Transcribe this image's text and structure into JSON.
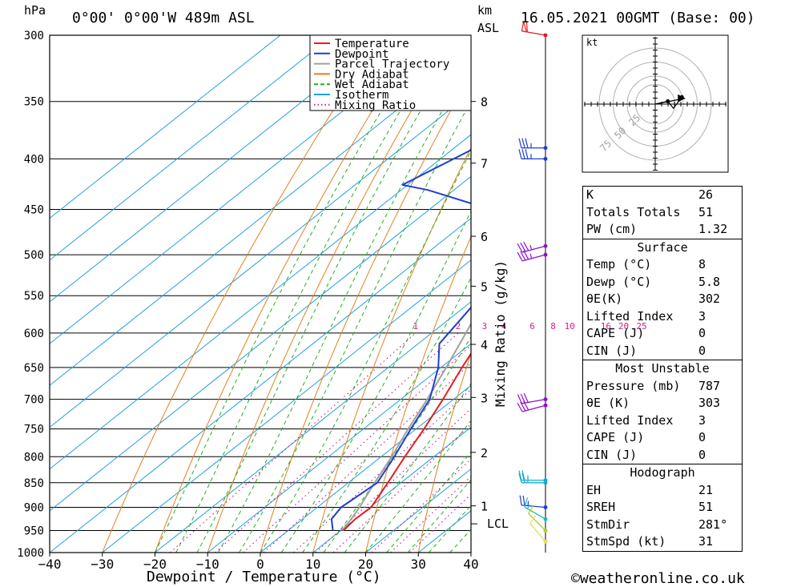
{
  "header": {
    "location": "0°00' 0°00'W 489m ASL",
    "datetime": "16.05.2021 00GMT (Base: 00)",
    "unit_hpa": "hPa",
    "unit_km": "km",
    "unit_asl": "ASL"
  },
  "legend": {
    "items": [
      {
        "label": "Temperature",
        "color": "#e02020",
        "style": "solid"
      },
      {
        "label": "Dewpoint",
        "color": "#1f3fd0",
        "style": "solid"
      },
      {
        "label": "Parcel Trajectory",
        "color": "#a0a0a0",
        "style": "solid"
      },
      {
        "label": "Dry Adiabat",
        "color": "#e08020",
        "style": "solid"
      },
      {
        "label": "Wet Adiabat",
        "color": "#20b020",
        "style": "dashed"
      },
      {
        "label": "Isotherm",
        "color": "#20a0e0",
        "style": "solid"
      },
      {
        "label": "Mixing Ratio",
        "color": "#d0208a",
        "style": "dotted"
      }
    ]
  },
  "chart_data": {
    "type": "skew-t",
    "xlabel": "Dewpoint / Temperature (°C)",
    "x_ticks": [
      "−40",
      "−30",
      "−20",
      "−10",
      "0",
      "10",
      "20",
      "30",
      "40"
    ],
    "xlim": [
      -40,
      40
    ],
    "ylabel_pressure_ticks": [
      "300",
      "350",
      "400",
      "450",
      "500",
      "550",
      "600",
      "650",
      "700",
      "750",
      "800",
      "850",
      "900",
      "950",
      "1000"
    ],
    "km_ticks": [
      {
        "label": "8",
        "p": 350
      },
      {
        "label": "7",
        "p": 404
      },
      {
        "label": "6",
        "p": 479
      },
      {
        "label": "5",
        "p": 538
      },
      {
        "label": "4",
        "p": 616
      },
      {
        "label": "3",
        "p": 697
      },
      {
        "label": "2",
        "p": 792
      },
      {
        "label": "1",
        "p": 897
      }
    ],
    "lcl_label": "LCL",
    "lcl_pressure": 918,
    "mixing_ratio_title": "Mixing Ratio (g/kg)",
    "mixing_ratio_labels": [
      "1",
      "2",
      "3",
      "4",
      "6",
      "8",
      "10",
      "16",
      "20",
      "25"
    ],
    "temperature": [
      {
        "p": 950,
        "t": 10.5
      },
      {
        "p": 925,
        "t": 10.0
      },
      {
        "p": 900,
        "t": 10.2
      },
      {
        "p": 850,
        "t": 7.5
      },
      {
        "p": 800,
        "t": 4.5
      },
      {
        "p": 750,
        "t": 1.5
      },
      {
        "p": 700,
        "t": -2.0
      },
      {
        "p": 650,
        "t": -6.0
      },
      {
        "p": 600,
        "t": -10.0
      },
      {
        "p": 550,
        "t": -15.0
      },
      {
        "p": 500,
        "t": -20.5
      },
      {
        "p": 460,
        "t": -25.5
      },
      {
        "p": 455,
        "t": -26.0
      },
      {
        "p": 430,
        "t": -22.0
      },
      {
        "p": 400,
        "t": -25.0
      },
      {
        "p": 370,
        "t": -29.0
      },
      {
        "p": 350,
        "t": -30.5
      },
      {
        "p": 300,
        "t": -35.0
      }
    ],
    "dewpoint": [
      {
        "p": 950,
        "t": 8.5
      },
      {
        "p": 925,
        "t": 5.5
      },
      {
        "p": 900,
        "t": 4.5
      },
      {
        "p": 850,
        "t": 5.5
      },
      {
        "p": 800,
        "t": 2.5
      },
      {
        "p": 750,
        "t": -1.0
      },
      {
        "p": 700,
        "t": -4.5
      },
      {
        "p": 650,
        "t": -10.5
      },
      {
        "p": 615,
        "t": -16.0
      },
      {
        "p": 550,
        "t": -19.5
      },
      {
        "p": 500,
        "t": -25.0
      },
      {
        "p": 450,
        "t": -30.0
      },
      {
        "p": 448,
        "t": -40.0
      },
      {
        "p": 430,
        "t": -55.0
      },
      {
        "p": 425,
        "t": -61.0
      },
      {
        "p": 370,
        "t": -53.0
      },
      {
        "p": 340,
        "t": -55.0
      },
      {
        "p": 300,
        "t": -60.0
      }
    ],
    "parcel": [
      {
        "p": 950,
        "t": 10.3
      },
      {
        "p": 918,
        "t": 8.9
      },
      {
        "p": 900,
        "t": 8.0
      },
      {
        "p": 850,
        "t": 5.0
      },
      {
        "p": 800,
        "t": 2.0
      },
      {
        "p": 750,
        "t": -1.5
      },
      {
        "p": 700,
        "t": -5.0
      },
      {
        "p": 650,
        "t": -9.0
      },
      {
        "p": 600,
        "t": -13.5
      },
      {
        "p": 550,
        "t": -18.5
      },
      {
        "p": 500,
        "t": -24.5
      },
      {
        "p": 450,
        "t": -31.0
      },
      {
        "p": 400,
        "t": -38.5
      },
      {
        "p": 350,
        "t": -47.0
      },
      {
        "p": 300,
        "t": -56.5
      }
    ],
    "wind_barbs": [
      {
        "p": 300,
        "color": "#e02020",
        "dir": 280,
        "speed": 60
      },
      {
        "p": 390,
        "color": "#1f3fd0",
        "dir": 270,
        "speed": 35
      },
      {
        "p": 400,
        "color": "#1f3fd0",
        "dir": 270,
        "speed": 35
      },
      {
        "p": 490,
        "color": "#9010d0",
        "dir": 255,
        "speed": 35
      },
      {
        "p": 500,
        "color": "#9010d0",
        "dir": 255,
        "speed": 35
      },
      {
        "p": 700,
        "color": "#9010d0",
        "dir": 260,
        "speed": 30
      },
      {
        "p": 710,
        "color": "#9010d0",
        "dir": 255,
        "speed": 30
      },
      {
        "p": 845,
        "color": "#10b0d0",
        "dir": 270,
        "speed": 25
      },
      {
        "p": 850,
        "color": "#10b0d0",
        "dir": 270,
        "speed": 25
      },
      {
        "p": 900,
        "color": "#1f3fd0",
        "dir": 275,
        "speed": 25
      },
      {
        "p": 925,
        "color": "#10c0c0",
        "dir": 300,
        "speed": 15
      },
      {
        "p": 950,
        "color": "#b0d020",
        "dir": 315,
        "speed": 10
      },
      {
        "p": 975,
        "color": "#e0e060",
        "dir": 320,
        "speed": 10
      }
    ],
    "hodograph": {
      "unit": "kt",
      "ring_labels": [
        "25",
        "50",
        "75"
      ],
      "points": [
        [
          0,
          0
        ],
        [
          9,
          2
        ],
        [
          13,
          -3
        ],
        [
          19,
          5
        ]
      ],
      "storm_motion": {
        "dir": 281,
        "speed": 31
      }
    }
  },
  "indices": {
    "general": [
      {
        "k": "K",
        "v": "26"
      },
      {
        "k": "Totals Totals",
        "v": "51"
      },
      {
        "k": "PW (cm)",
        "v": "1.32"
      }
    ],
    "surface": {
      "title": "Surface",
      "rows": [
        {
          "k": "Temp (°C)",
          "v": "8"
        },
        {
          "k": "Dewp (°C)",
          "v": "5.8"
        },
        {
          "k": "θE(K)",
          "v": "302"
        },
        {
          "k": "Lifted Index",
          "v": "3"
        },
        {
          "k": "CAPE (J)",
          "v": "0"
        },
        {
          "k": "CIN (J)",
          "v": "0"
        }
      ]
    },
    "most_unstable": {
      "title": "Most Unstable",
      "rows": [
        {
          "k": "Pressure (mb)",
          "v": "787"
        },
        {
          "k": "θE (K)",
          "v": "303"
        },
        {
          "k": "Lifted Index",
          "v": "3"
        },
        {
          "k": "CAPE (J)",
          "v": "0"
        },
        {
          "k": "CIN (J)",
          "v": "0"
        }
      ]
    },
    "hodograph": {
      "title": "Hodograph",
      "rows": [
        {
          "k": "EH",
          "v": "21"
        },
        {
          "k": "SREH",
          "v": "51"
        },
        {
          "k": "StmDir",
          "v": "281°"
        },
        {
          "k": "StmSpd (kt)",
          "v": "31"
        }
      ]
    }
  },
  "footer": {
    "credit": "©weatheronline.co.uk"
  }
}
